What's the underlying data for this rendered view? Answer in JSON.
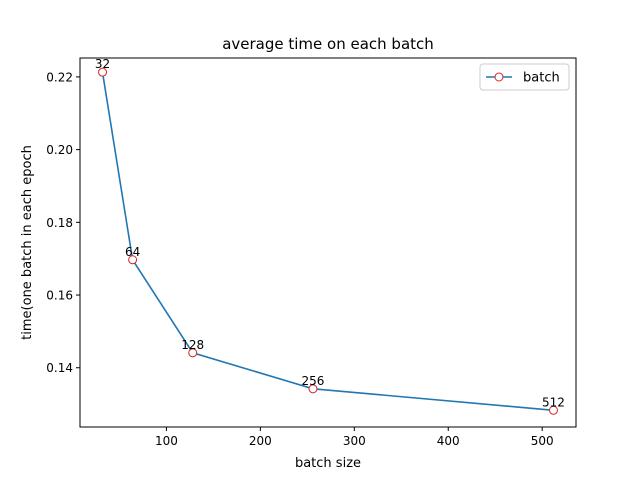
{
  "chart_data": {
    "type": "line",
    "title": "average time on each batch",
    "xlabel": "batch size",
    "ylabel": "time(one batch in each epoch",
    "x": [
      32,
      64,
      128,
      256,
      512
    ],
    "series": [
      {
        "name": "batch",
        "values": [
          0.2213,
          0.1697,
          0.1441,
          0.1342,
          0.1283
        ],
        "color": "#1f77b4",
        "marker_edge_color": "#d62728",
        "marker_face_color": "#ffffff",
        "data_labels": [
          "32",
          "64",
          "128",
          "256",
          "512"
        ]
      }
    ],
    "xlim": [
      8.0,
      536.0
    ],
    "ylim": [
      0.1237,
      0.2252
    ],
    "xticks": [
      100,
      200,
      300,
      400,
      500
    ],
    "xtick_labels": [
      "100",
      "200",
      "300",
      "400",
      "500"
    ],
    "yticks": [
      0.14,
      0.16,
      0.18,
      0.2,
      0.22
    ],
    "ytick_labels": [
      "0.14",
      "0.16",
      "0.18",
      "0.20",
      "0.22"
    ],
    "grid": false,
    "legend": {
      "position": "top-right",
      "entries": [
        "batch"
      ]
    }
  }
}
